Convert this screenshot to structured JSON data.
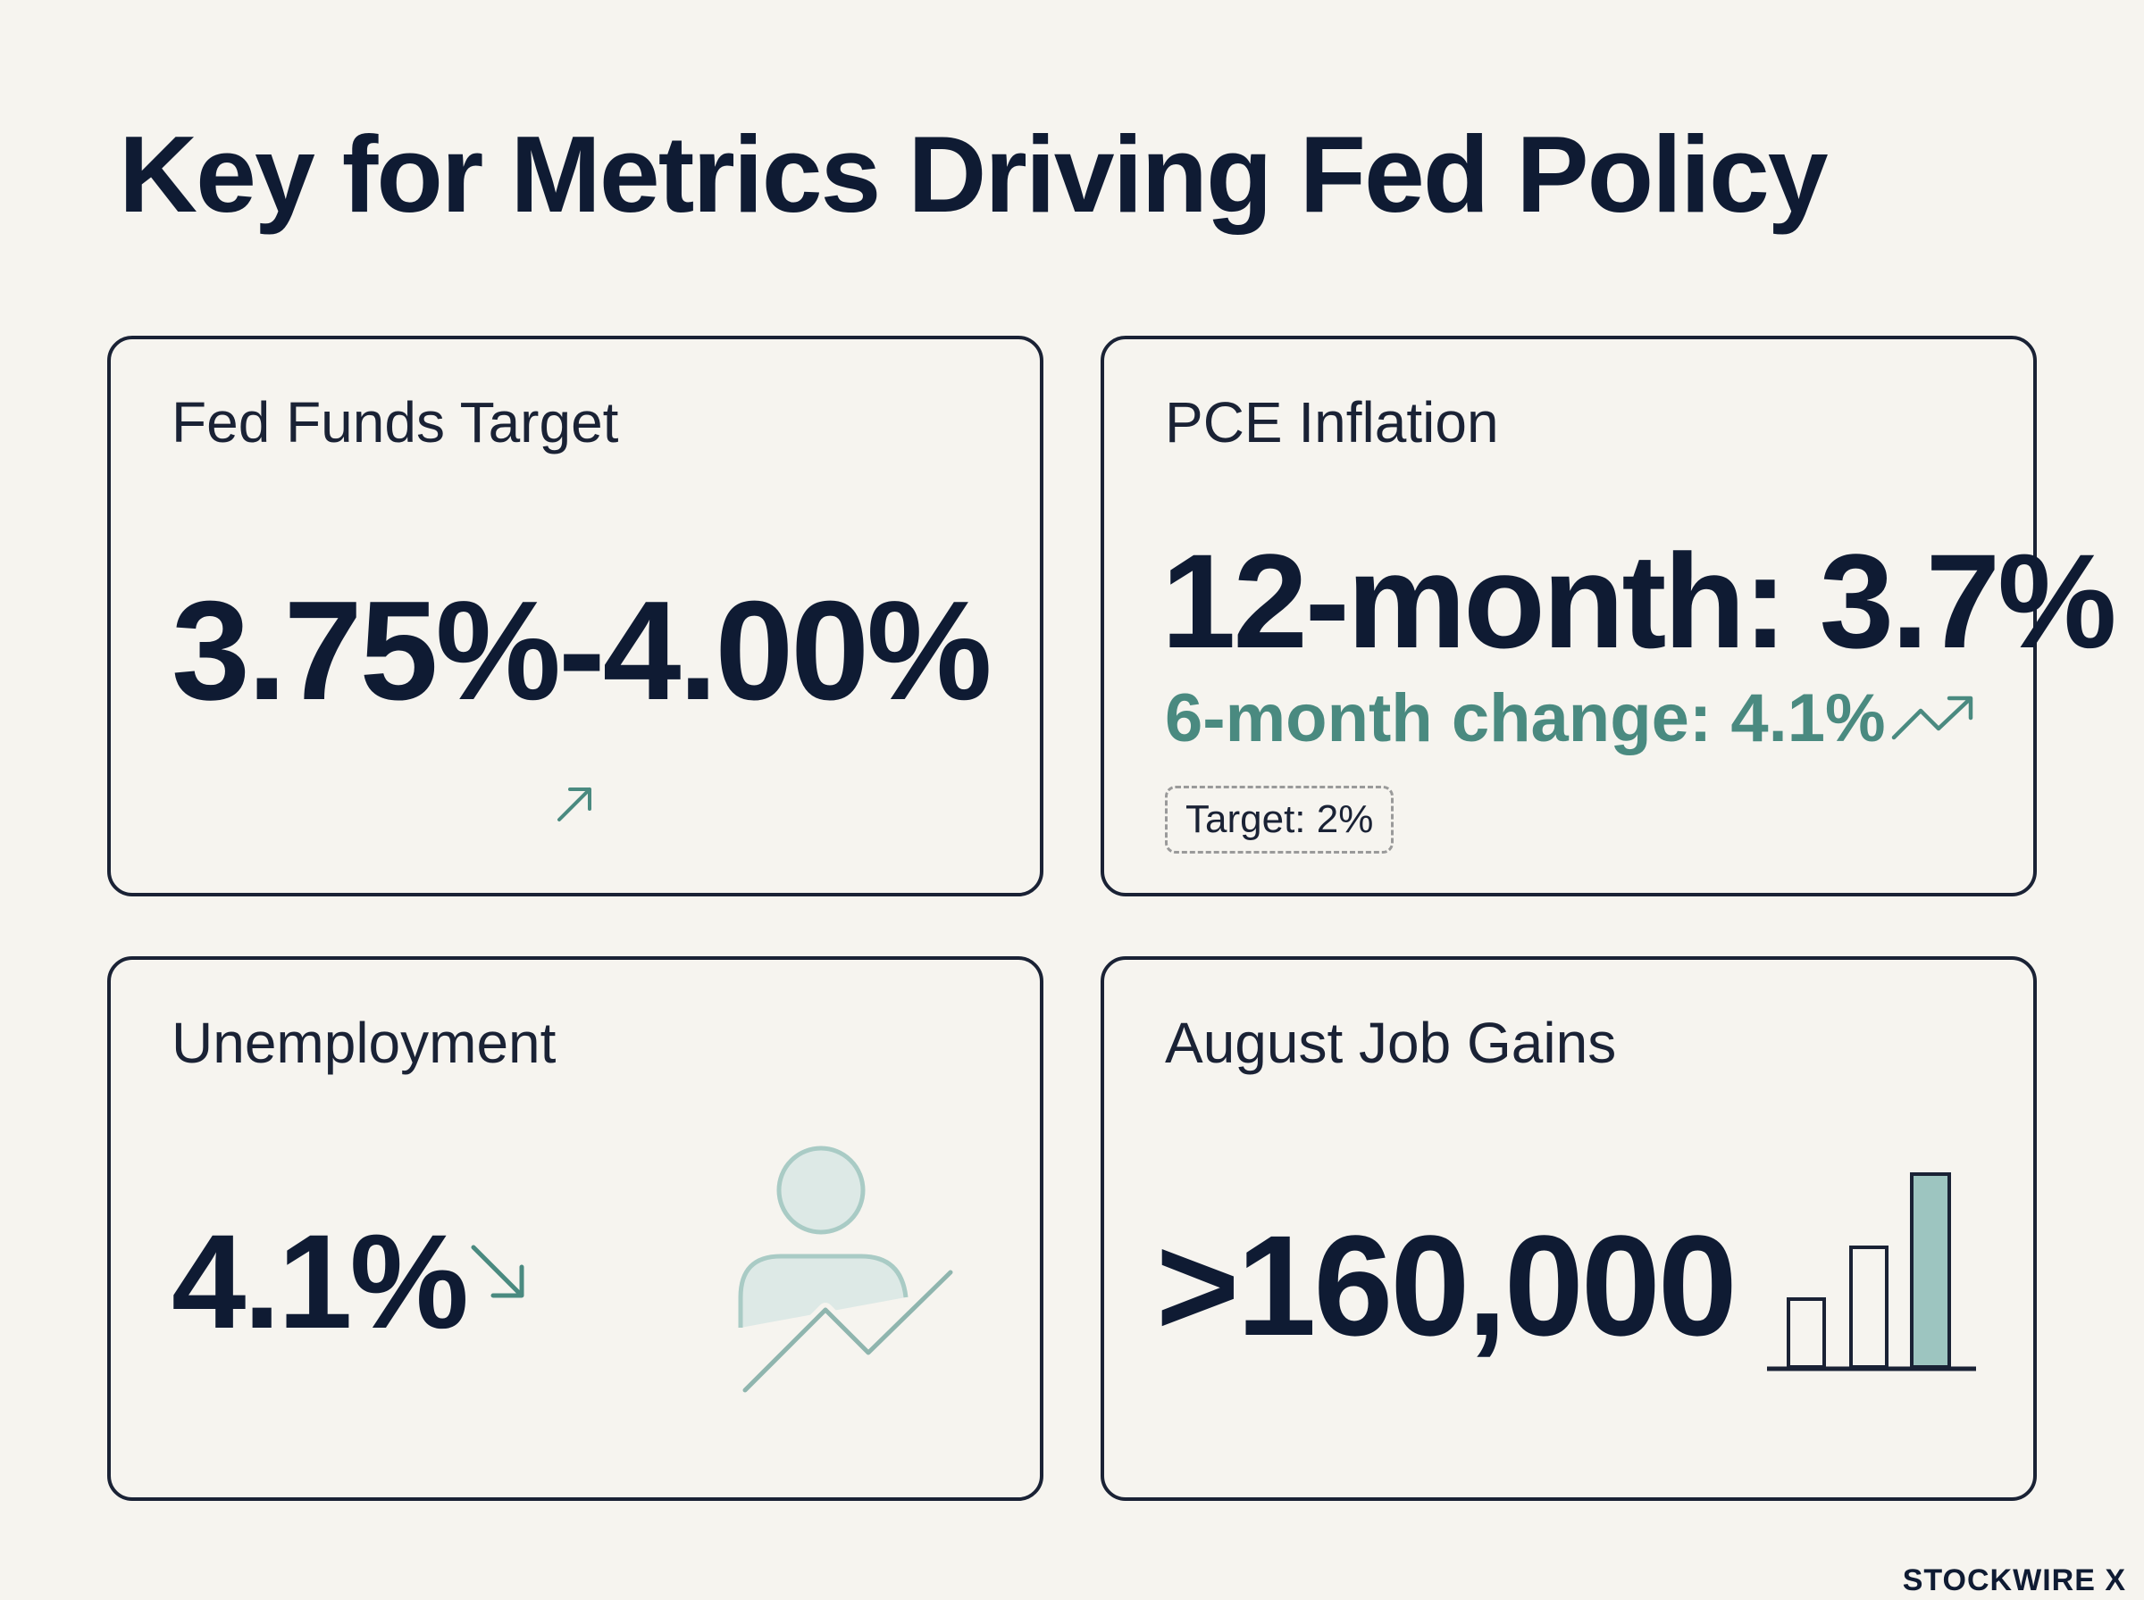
{
  "title": "Key for Metrics Driving Fed Policy",
  "cards": {
    "fed_funds": {
      "label": "Fed Funds Target",
      "value": "3.75%-4.00%",
      "trend_icon": "arrow-up-right-icon"
    },
    "pce": {
      "label": "PCE Inflation",
      "twelve_month": "12-month: 3.7%",
      "six_month": "6-month change: 4.1%",
      "target": "Target: 2%",
      "trend_icon": "trending-up-icon"
    },
    "unemployment": {
      "label": "Unemployment",
      "value": "4.1%",
      "trend_icon": "arrow-down-right-icon",
      "illustration": "person-chart-icon"
    },
    "jobs": {
      "label": "August Job Gains",
      "value": ">160,000",
      "illustration": "bar-chart-icon"
    }
  },
  "brand": "STOCKWIRE X",
  "colors": {
    "accent": "#4a8a80",
    "text": "#0f1b33",
    "background": "#f6f4ef",
    "border": "#1a2235"
  }
}
